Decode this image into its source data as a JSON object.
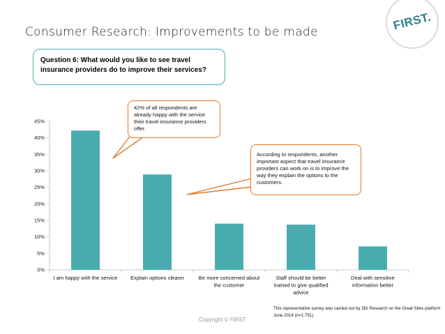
{
  "header": {
    "title": "Consumer Research: Improvements to be made",
    "logo_text": "FIRST."
  },
  "question": {
    "text": "Question 6: What would you like to see travel insurance providers do to improve their services?"
  },
  "callouts": [
    {
      "text": "42% of all respondents are already happy with the service their travel insurance providers offer."
    },
    {
      "text": "According to respondents, another important aspect that travel insurance providers can work on is to improve the way they explain the options to the customers."
    }
  ],
  "footnote": "This representative survey was carried out by 3Di Research on the Great Sites platform June 2014 (n=1,751).",
  "copyright": "Copyright © FIRST",
  "colors": {
    "bar": "#4bacb0",
    "callout_border": "#e07a2a",
    "question_border": "#49aeb1",
    "axis": "#c8c8c8"
  },
  "chart_data": {
    "type": "bar",
    "categories": [
      "I am happy with the service",
      "Explain options clearer",
      "Be more concerned about the customer",
      "Staff should be better trained to give qualified advice",
      "Deal with sensitive information better"
    ],
    "category_lines": [
      [
        "I am happy with the service"
      ],
      [
        "Explain options clearer"
      ],
      [
        "Be more concerned about",
        "the customer"
      ],
      [
        "Staff should be better",
        "trained to give qualified",
        "advice"
      ],
      [
        "Deal with sensitive",
        "information better"
      ]
    ],
    "values": [
      42.2,
      28.9,
      14.0,
      13.7,
      7.1
    ],
    "ylim": [
      0,
      45
    ],
    "yticks": [
      "0%",
      "5%",
      "10%",
      "15%",
      "20%",
      "25%",
      "30%",
      "35%",
      "40%",
      "45%"
    ],
    "ytick_values": [
      0,
      5,
      10,
      15,
      20,
      25,
      30,
      35,
      40,
      45
    ],
    "grid": false
  }
}
